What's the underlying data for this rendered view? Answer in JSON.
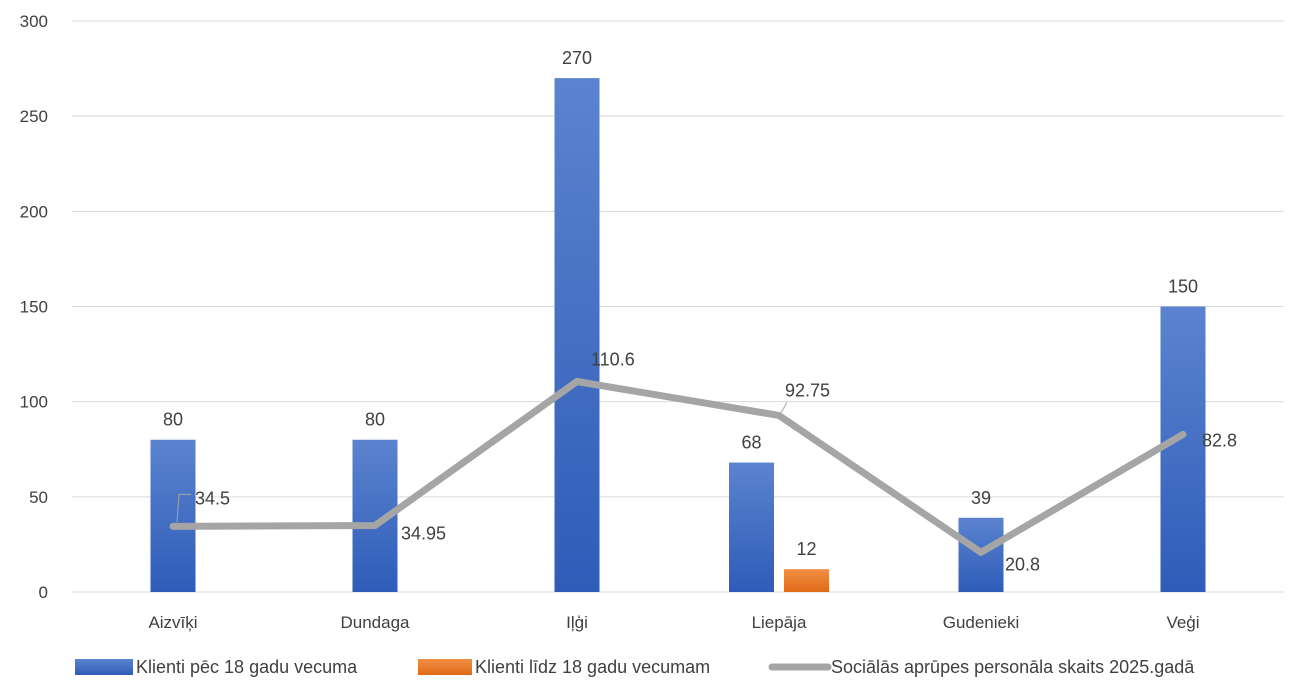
{
  "chart_data": {
    "type": "bar",
    "categories": [
      "Aizvīķi",
      "Dundaga",
      "Iļģi",
      "Liepāja",
      "Gudenieki",
      "Veģi"
    ],
    "series": [
      {
        "name": "Klienti pēc 18 gadu vecuma",
        "kind": "bar",
        "color": "#4472C4",
        "values": [
          80,
          80,
          270,
          68,
          39,
          150
        ]
      },
      {
        "name": "Klienti līdz 18 gadu vecumam",
        "kind": "bar",
        "color": "#ED7D31",
        "values": [
          null,
          null,
          null,
          12,
          null,
          null
        ]
      },
      {
        "name": "Sociālās aprūpes personāla skaits 2025.gadā",
        "kind": "line",
        "color": "#A5A5A5",
        "values": [
          34.5,
          34.95,
          110.6,
          92.75,
          20.8,
          82.8
        ]
      }
    ],
    "value_labels": {
      "s0": [
        "80",
        "80",
        "270",
        "68",
        "39",
        "150"
      ],
      "s1": [
        "",
        "",
        "",
        "12",
        "",
        ""
      ],
      "s2": [
        "34.5",
        "34.95",
        "110.6",
        "92.75",
        "20.8",
        "82.8"
      ]
    },
    "yticks": [
      "0",
      "50",
      "100",
      "150",
      "200",
      "250",
      "300"
    ],
    "ylim": [
      0,
      300
    ],
    "grid": true,
    "legend_position": "bottom",
    "title": "",
    "xlabel": "",
    "ylabel": ""
  }
}
